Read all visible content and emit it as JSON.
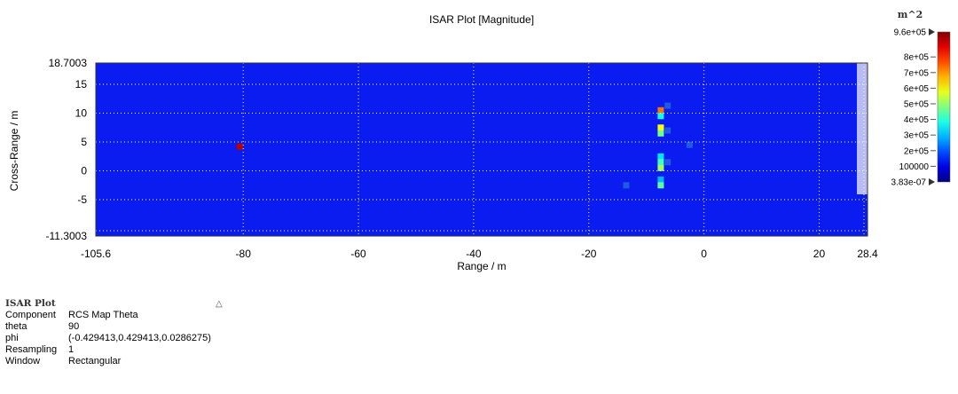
{
  "chart_data": {
    "type": "heatmap",
    "title": "ISAR Plot [Magnitude]",
    "xlabel": "Range / m",
    "ylabel": "Cross-Range / m",
    "xlim": [
      -105.6,
      28.4
    ],
    "ylim": [
      -11.3003,
      18.7003
    ],
    "x_ticks": [
      -105.6,
      -80,
      -60,
      -40,
      -20,
      0,
      20,
      28.4
    ],
    "x_tick_labels": [
      "-105.6",
      "-80",
      "-60",
      "-40",
      "-20",
      "0",
      "20",
      "28.4"
    ],
    "y_ticks": [
      -11.3003,
      -5,
      0,
      5,
      10,
      15,
      18.7003
    ],
    "y_tick_labels": [
      "-11.3003",
      "-5",
      "0",
      "5",
      "10",
      "15",
      "18.7003"
    ],
    "grid": true,
    "background_value": 0,
    "colorbar": {
      "unit": "m^2",
      "min": 3.83e-07,
      "max": 960000,
      "min_label": "3.83e-07",
      "max_label": "9.6e+05",
      "ticks": [
        100000,
        200000,
        300000,
        400000,
        500000,
        600000,
        700000,
        800000
      ],
      "tick_labels": [
        "100000",
        "2e+05",
        "3e+05",
        "4e+05",
        "5e+05",
        "6e+05",
        "7e+05",
        "8e+05"
      ]
    },
    "hotspots": [
      {
        "x": -80.6,
        "y": 4.2,
        "value": 900000
      },
      {
        "x": -7.5,
        "y": 10.5,
        "value": 700000
      },
      {
        "x": -7.5,
        "y": 9.5,
        "value": 300000
      },
      {
        "x": -7.5,
        "y": 7.5,
        "value": 550000
      },
      {
        "x": -7.5,
        "y": 6.5,
        "value": 400000
      },
      {
        "x": -7.5,
        "y": 2.5,
        "value": 250000
      },
      {
        "x": -7.5,
        "y": 1.5,
        "value": 350000
      },
      {
        "x": -7.5,
        "y": 0.5,
        "value": 450000
      },
      {
        "x": -7.5,
        "y": -1.5,
        "value": 200000
      },
      {
        "x": -7.5,
        "y": -2.5,
        "value": 380000
      },
      {
        "x": -2.5,
        "y": 4.5,
        "value": 90000
      },
      {
        "x": -13.5,
        "y": -2.5,
        "value": 60000
      },
      {
        "x": -6.3,
        "y": 11.3,
        "value": 50000
      },
      {
        "x": -6.3,
        "y": 7.0,
        "value": 50000
      },
      {
        "x": -6.3,
        "y": 1.5,
        "value": 50000
      }
    ]
  },
  "info": {
    "title": "ISAR Plot",
    "rows": [
      {
        "key": "Component",
        "value": "RCS Map Theta"
      },
      {
        "key": "theta",
        "value": "90"
      },
      {
        "key": "phi",
        "value": "(-0.429413,0.429413,0.0286275)"
      },
      {
        "key": "Resampling",
        "value": "1"
      },
      {
        "key": "Window",
        "value": "Rectangular"
      }
    ],
    "collapse_icon": "collapse-icon"
  }
}
